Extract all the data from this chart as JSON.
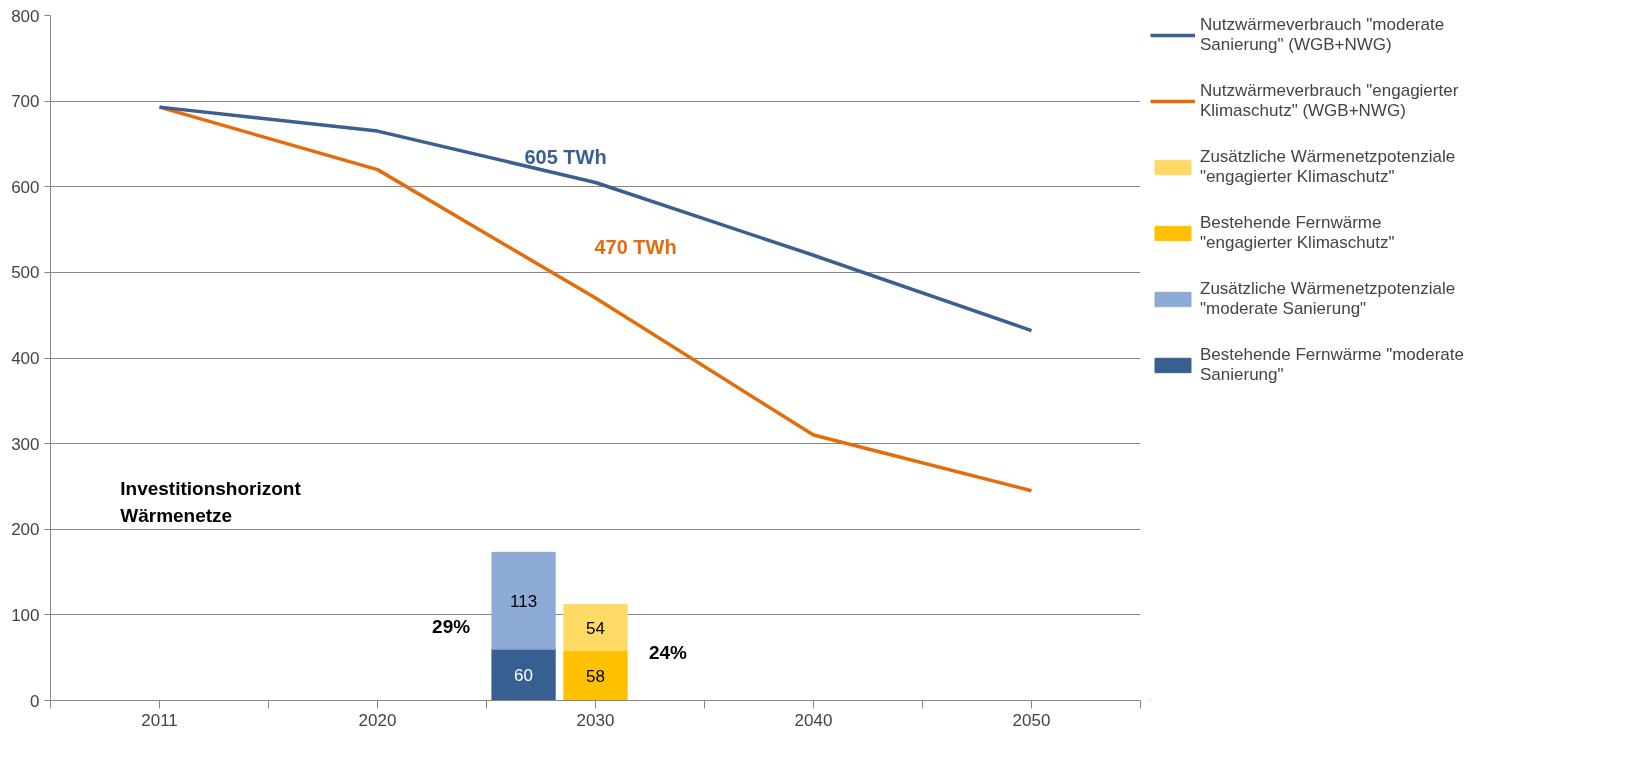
{
  "chart_data": {
    "type": "bar",
    "categories": [
      "2011",
      "2020",
      "2030",
      "2040",
      "2050"
    ],
    "ylim": [
      0,
      800
    ],
    "yticks": [
      0,
      100,
      200,
      300,
      400,
      500,
      600,
      700,
      800
    ],
    "grid": "y",
    "legend": "right",
    "series": [
      {
        "name": "Bestehende Fernwärme \"moderate Sanierung\"",
        "color": "#375f91",
        "values": [
          null,
          null,
          60,
          null,
          null
        ],
        "value_labels": [
          null,
          null,
          "60",
          null,
          null
        ]
      },
      {
        "name": "Zusätzliche Wärmenetzpotenziale \"moderate Sanierung\"",
        "color": "#8eaad6",
        "base": [
          null,
          null,
          60,
          null,
          null
        ],
        "values": [
          null,
          null,
          113,
          null,
          null
        ],
        "value_labels": [
          null,
          null,
          "113",
          null,
          null
        ]
      },
      {
        "name": "Bestehende Fernwärme \"engagierter Klimaschutz\"",
        "color": "#ffc000",
        "values": [
          null,
          null,
          58,
          null,
          null
        ],
        "value_labels": [
          null,
          null,
          "58",
          null,
          null
        ]
      },
      {
        "name": "Zusätzliche Wärmenetzpotenziale \"engagierter Klimaschutz\"",
        "color": "#ffd966",
        "base": [
          null,
          null,
          58,
          null,
          null
        ],
        "values": [
          null,
          null,
          54,
          null,
          null
        ],
        "value_labels": [
          null,
          null,
          "54",
          null,
          null
        ]
      },
      {
        "name": "Nutzwärmeverbrauch \"engagierter Klimaschutz\" (WGB+NWG)",
        "type": "line",
        "color": "#e46c0a",
        "values": [
          693,
          620,
          470,
          310,
          245
        ]
      },
      {
        "name": "Nutzwärmeverbrauch \"moderate Sanierung\" (WGB+NWG)",
        "type": "line",
        "color": "#3b5f91",
        "values": [
          693,
          665,
          605,
          520,
          432
        ]
      }
    ],
    "annotations": [
      {
        "text": "605 TWh",
        "x": "2030",
        "y": 605
      },
      {
        "text": "470 TWh",
        "x": "2030",
        "y": 470
      },
      "Investitionshorizont\nWärmenetze",
      "29%",
      "24%"
    ]
  }
}
